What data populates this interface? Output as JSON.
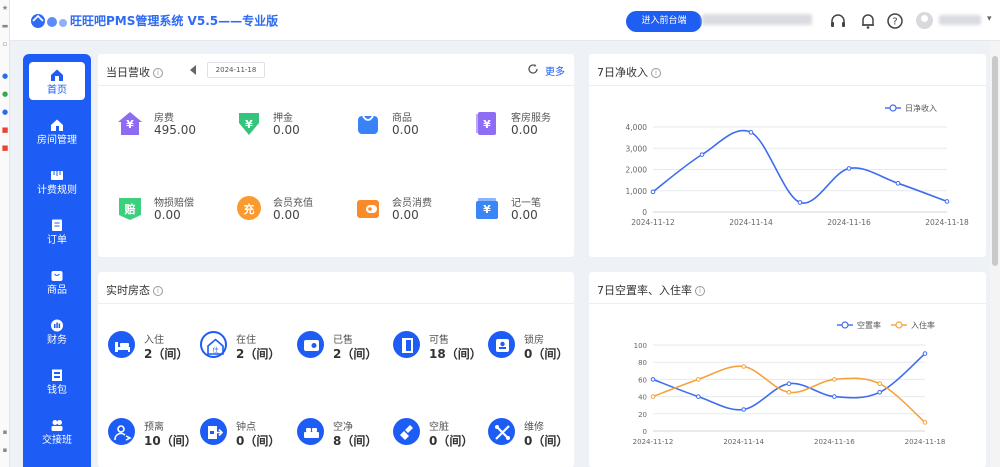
{
  "header": {
    "title": "旺旺吧PMS管理系统 V5.5——专业版",
    "enter_button": "进入前台端"
  },
  "sidebar": {
    "items": [
      {
        "label": "首页",
        "icon": "home-icon",
        "active": true
      },
      {
        "label": "房间管理",
        "icon": "room-icon"
      },
      {
        "label": "计费规则",
        "icon": "ruler-icon"
      },
      {
        "label": "订单",
        "icon": "order-icon"
      },
      {
        "label": "商品",
        "icon": "product-icon"
      },
      {
        "label": "财务",
        "icon": "finance-icon"
      },
      {
        "label": "钱包",
        "icon": "wallet-icon"
      },
      {
        "label": "交接班",
        "icon": "handover-icon"
      }
    ]
  },
  "revenue": {
    "title": "当日营收",
    "date": "2024-11-18",
    "more": "更多",
    "items": [
      {
        "label": "房费",
        "value": "495.00",
        "color": "#8d6cf2",
        "icon": "house-icon",
        "glyph": "¥"
      },
      {
        "label": "押金",
        "value": "0.00",
        "color": "#35c47c",
        "icon": "deposit-icon",
        "glyph": "¥"
      },
      {
        "label": "商品",
        "value": "0.00",
        "color": "#3a82f7",
        "icon": "shopping-bag-icon",
        "glyph": ""
      },
      {
        "label": "客房服务",
        "value": "0.00",
        "color": "#8f6cf4",
        "icon": "room-service-icon",
        "glyph": "¥"
      },
      {
        "label": "物损赔偿",
        "value": "0.00",
        "color": "#3ccf7e",
        "icon": "compensation-icon",
        "glyph": "赔"
      },
      {
        "label": "会员充值",
        "value": "0.00",
        "color": "#fb9a2e",
        "icon": "recharge-icon",
        "glyph": "充"
      },
      {
        "label": "会员消费",
        "value": "0.00",
        "color": "#fb8a2a",
        "icon": "member-wallet-icon",
        "glyph": ""
      },
      {
        "label": "记一笔",
        "value": "0.00",
        "color": "#3a86f7",
        "icon": "record-icon",
        "glyph": "¥"
      }
    ]
  },
  "room_status": {
    "title": "实时房态",
    "items": [
      {
        "label": "入住",
        "value": "2（间）",
        "icon": "bed-icon"
      },
      {
        "label": "在住",
        "value": "2（间）",
        "icon": "home-outline-icon"
      },
      {
        "label": "已售",
        "value": "2（间）",
        "icon": "sold-icon"
      },
      {
        "label": "可售",
        "value": "18（间）",
        "icon": "door-icon"
      },
      {
        "label": "锁房",
        "value": "0（间）",
        "icon": "lock-icon"
      },
      {
        "label": "预离",
        "value": "10（间）",
        "icon": "user-leave-icon"
      },
      {
        "label": "钟点",
        "value": "0（间）",
        "icon": "exit-icon"
      },
      {
        "label": "空净",
        "value": "8（间）",
        "icon": "clean-bed-icon"
      },
      {
        "label": "空脏",
        "value": "0（间）",
        "icon": "broom-icon"
      },
      {
        "label": "维修",
        "value": "0（间）",
        "icon": "tools-icon"
      }
    ]
  },
  "net_income_chart": {
    "title": "7日净收入",
    "chart_data": {
      "type": "line",
      "x": [
        "2024-11-12",
        "2024-11-13",
        "2024-11-14",
        "2024-11-15",
        "2024-11-16",
        "2024-11-17",
        "2024-11-18"
      ],
      "x_tick_labels": [
        "2024-11-12",
        "2024-11-14",
        "2024-11-16",
        "2024-11-18"
      ],
      "series": [
        {
          "name": "日净收入",
          "values": [
            950,
            2700,
            3750,
            450,
            2050,
            1350,
            495
          ],
          "color": "#3d6cf0"
        }
      ],
      "ylim": [
        0,
        4000
      ],
      "y_ticks": [
        "0",
        "1,000",
        "2,000",
        "3,000",
        "4,000"
      ],
      "grid": true,
      "legend": "top-right",
      "smooth": true
    }
  },
  "occupancy_chart": {
    "title": "7日空置率、入住率",
    "chart_data": {
      "type": "line",
      "x": [
        "2024-11-12",
        "2024-11-13",
        "2024-11-14",
        "2024-11-15",
        "2024-11-16",
        "2024-11-17",
        "2024-11-18"
      ],
      "x_tick_labels": [
        "2024-11-12",
        "2024-11-14",
        "2024-11-16",
        "2024-11-18"
      ],
      "series": [
        {
          "name": "空置率",
          "values": [
            60,
            40,
            25,
            55,
            40,
            45,
            90
          ],
          "color": "#3d6cf0"
        },
        {
          "name": "入住率",
          "values": [
            40,
            60,
            75,
            45,
            60,
            55,
            10
          ],
          "color": "#f7a23c"
        }
      ],
      "ylim": [
        0,
        100
      ],
      "y_ticks": [
        "0",
        "20",
        "40",
        "60",
        "80",
        "100"
      ],
      "grid": true,
      "legend": "top-right",
      "smooth": true
    }
  }
}
